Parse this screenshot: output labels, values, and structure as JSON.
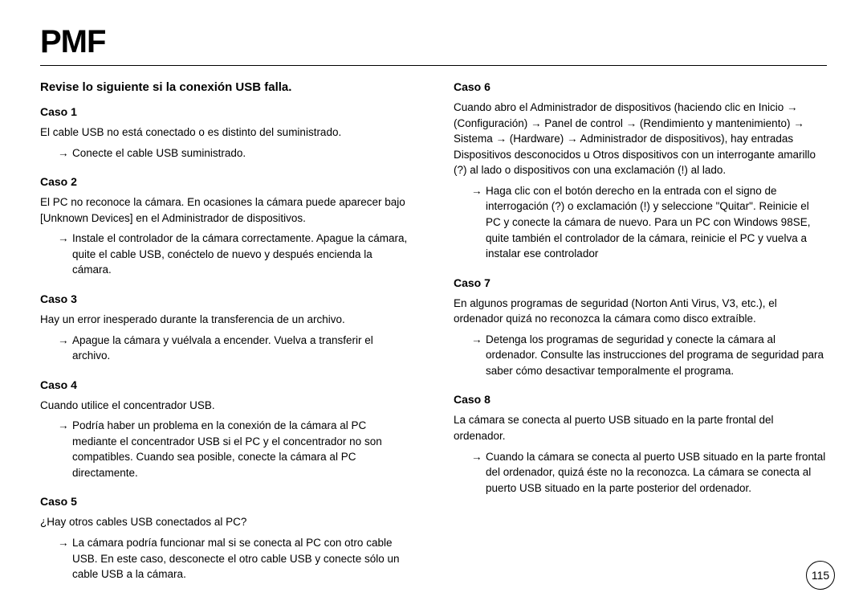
{
  "title": "PMF",
  "heading": "Revise lo siguiente si la conexión USB falla.",
  "arrow": "→",
  "left": [
    {
      "label": "Caso 1",
      "desc": "El cable USB no está conectado o es distinto del suministrado.",
      "action": "Conecte el cable USB suministrado."
    },
    {
      "label": "Caso 2",
      "desc": "El PC no reconoce la cámara.\nEn ocasiones la cámara puede aparecer bajo [Unknown Devices] en el Administrador de dispositivos.",
      "action": "Instale el controlador de la cámara correctamente. Apague la cámara, quite el cable USB, conéctelo de nuevo y después encienda la cámara."
    },
    {
      "label": "Caso 3",
      "desc": "Hay un error inesperado durante la transferencia de un archivo.",
      "action": "Apague la cámara y vuélvala a encender. Vuelva a transferir el archivo."
    },
    {
      "label": "Caso 4",
      "desc": "Cuando utilice el concentrador USB.",
      "action": "Podría haber un problema en la conexión de la cámara al PC mediante el concentrador USB si el PC y el concentrador no son compatibles. Cuando sea posible, conecte la cámara al PC directamente."
    },
    {
      "label": "Caso 5",
      "desc": "¿Hay otros cables USB conectados al PC?",
      "action": "La cámara podría funcionar mal si se conecta al PC con otro cable USB. En este caso, desconecte el otro cable USB y conecte sólo un cable USB a la cámara."
    }
  ],
  "right": [
    {
      "label": "Caso 6",
      "desc": "Cuando abro el Administrador de dispositivos (haciendo clic en Inicio → (Configuración) → Panel de control → (Rendimiento y mantenimiento) → Sistema → (Hardware) → Administrador de dispositivos), hay entradas Dispositivos desconocidos u Otros dispositivos con un interrogante amarillo (?) al lado o dispositivos con una exclamación (!) al lado.",
      "action": "Haga clic con el botón derecho en la entrada con el signo de interrogación (?) o exclamación (!) y seleccione \"Quitar\". Reinicie el PC y conecte la cámara de nuevo. Para un PC con Windows 98SE, quite también el controlador de la cámara, reinicie el PC y vuelva a instalar ese controlador"
    },
    {
      "label": "Caso 7",
      "desc": "En algunos programas de seguridad (Norton Anti Virus, V3, etc.), el ordenador quizá no reconozca la cámara como disco extraíble.",
      "action": "Detenga los programas de seguridad y conecte la cámara al ordenador. Consulte las instrucciones del programa de seguridad para saber cómo desactivar temporalmente el programa."
    },
    {
      "label": "Caso 8",
      "desc": "La cámara se conecta al puerto USB situado en la parte frontal del ordenador.",
      "action": "Cuando la cámara se conecta al puerto USB situado en la parte frontal del ordenador, quizá éste no la reconozca. La cámara se conecta al puerto USB situado en la parte posterior del ordenador."
    }
  ],
  "pageNumber": "115"
}
